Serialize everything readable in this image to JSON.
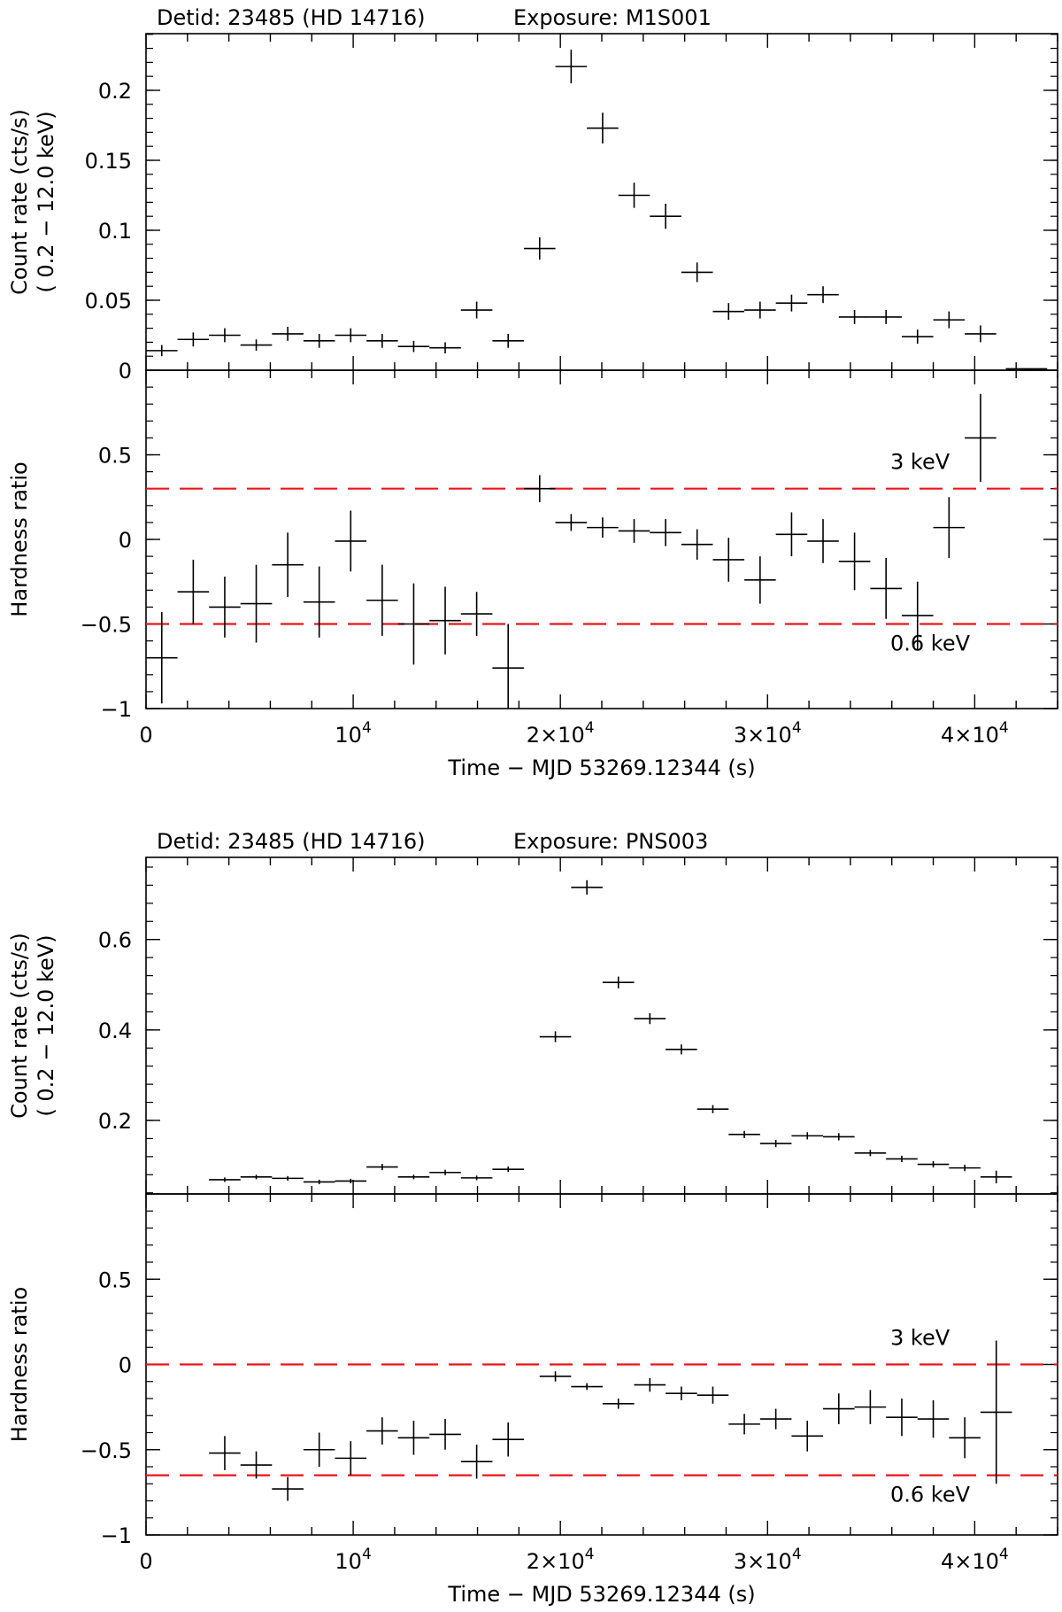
{
  "chart_data": [
    {
      "type": "scatter",
      "title_left": "Detid: 23485 (HD 14716)",
      "title_right": "Exposure: M1S001",
      "xlabel": "Time − MJD  53269.12344 (s)",
      "xlim": [
        0,
        44000
      ],
      "x_ticks": [
        {
          "value": 0,
          "base": "0",
          "exp": ""
        },
        {
          "value": 10000,
          "base": "10",
          "exp": "4"
        },
        {
          "value": 20000,
          "base": "2×10",
          "exp": "4"
        },
        {
          "value": 30000,
          "base": "3×10",
          "exp": "4"
        },
        {
          "value": 40000,
          "base": "4×10",
          "exp": "4"
        }
      ],
      "rate": {
        "ylabel1": "Count rate (cts/s)",
        "ylabel2": "( 0.2 − 12.0 keV)",
        "ylim": [
          0,
          0.2405
        ],
        "y_ticks": [
          {
            "value": 0,
            "label": "0"
          },
          {
            "value": 0.05,
            "label": "0.05"
          },
          {
            "value": 0.1,
            "label": "0.1"
          },
          {
            "value": 0.15,
            "label": "0.15"
          },
          {
            "value": 0.2,
            "label": "0.2"
          }
        ],
        "points": [
          {
            "x": 760,
            "y": 0.014,
            "xerr": 760,
            "yerr": 0.004
          },
          {
            "x": 2280,
            "y": 0.022,
            "xerr": 760,
            "yerr": 0.005
          },
          {
            "x": 3800,
            "y": 0.025,
            "xerr": 760,
            "yerr": 0.005
          },
          {
            "x": 5320,
            "y": 0.018,
            "xerr": 760,
            "yerr": 0.004
          },
          {
            "x": 6840,
            "y": 0.026,
            "xerr": 760,
            "yerr": 0.005
          },
          {
            "x": 8360,
            "y": 0.021,
            "xerr": 760,
            "yerr": 0.005
          },
          {
            "x": 9880,
            "y": 0.025,
            "xerr": 760,
            "yerr": 0.005
          },
          {
            "x": 11400,
            "y": 0.021,
            "xerr": 760,
            "yerr": 0.005
          },
          {
            "x": 12920,
            "y": 0.017,
            "xerr": 760,
            "yerr": 0.004
          },
          {
            "x": 14440,
            "y": 0.016,
            "xerr": 760,
            "yerr": 0.004
          },
          {
            "x": 15960,
            "y": 0.043,
            "xerr": 760,
            "yerr": 0.006
          },
          {
            "x": 17480,
            "y": 0.021,
            "xerr": 760,
            "yerr": 0.005
          },
          {
            "x": 19000,
            "y": 0.087,
            "xerr": 760,
            "yerr": 0.008
          },
          {
            "x": 20520,
            "y": 0.217,
            "xerr": 760,
            "yerr": 0.012
          },
          {
            "x": 22040,
            "y": 0.173,
            "xerr": 760,
            "yerr": 0.011
          },
          {
            "x": 23560,
            "y": 0.125,
            "xerr": 760,
            "yerr": 0.009
          },
          {
            "x": 25080,
            "y": 0.11,
            "xerr": 760,
            "yerr": 0.009
          },
          {
            "x": 26600,
            "y": 0.07,
            "xerr": 760,
            "yerr": 0.007
          },
          {
            "x": 28120,
            "y": 0.042,
            "xerr": 760,
            "yerr": 0.006
          },
          {
            "x": 29640,
            "y": 0.043,
            "xerr": 760,
            "yerr": 0.006
          },
          {
            "x": 31160,
            "y": 0.048,
            "xerr": 760,
            "yerr": 0.006
          },
          {
            "x": 32680,
            "y": 0.054,
            "xerr": 760,
            "yerr": 0.006
          },
          {
            "x": 34200,
            "y": 0.038,
            "xerr": 760,
            "yerr": 0.005
          },
          {
            "x": 35720,
            "y": 0.038,
            "xerr": 760,
            "yerr": 0.005
          },
          {
            "x": 37240,
            "y": 0.024,
            "xerr": 760,
            "yerr": 0.005
          },
          {
            "x": 38760,
            "y": 0.036,
            "xerr": 760,
            "yerr": 0.006
          },
          {
            "x": 40280,
            "y": 0.026,
            "xerr": 760,
            "yerr": 0.006
          },
          {
            "x": 42500,
            "y": 0.001,
            "xerr": 1000,
            "yerr": 0.0005
          }
        ]
      },
      "hardness": {
        "ylabel": "Hardness ratio",
        "ylim": [
          -1,
          1
        ],
        "y_ticks": [
          {
            "value": -1,
            "label": "−1"
          },
          {
            "value": -0.5,
            "label": "−0.5"
          },
          {
            "value": 0,
            "label": "0"
          },
          {
            "value": 0.5,
            "label": "0.5"
          }
        ],
        "ref_lines": [
          {
            "y": 0.3,
            "label": "3 keV"
          },
          {
            "y": -0.5,
            "label": "0.6 keV"
          }
        ],
        "points": [
          {
            "x": 760,
            "y": -0.7,
            "xerr": 760,
            "yerr": 0.27
          },
          {
            "x": 2280,
            "y": -0.31,
            "xerr": 760,
            "yerr": 0.19
          },
          {
            "x": 3800,
            "y": -0.4,
            "xerr": 760,
            "yerr": 0.18
          },
          {
            "x": 5320,
            "y": -0.38,
            "xerr": 760,
            "yerr": 0.23
          },
          {
            "x": 6840,
            "y": -0.15,
            "xerr": 760,
            "yerr": 0.19
          },
          {
            "x": 8360,
            "y": -0.37,
            "xerr": 760,
            "yerr": 0.21
          },
          {
            "x": 9880,
            "y": -0.01,
            "xerr": 760,
            "yerr": 0.18
          },
          {
            "x": 11400,
            "y": -0.36,
            "xerr": 760,
            "yerr": 0.21
          },
          {
            "x": 12920,
            "y": -0.5,
            "xerr": 760,
            "yerr": 0.24
          },
          {
            "x": 14440,
            "y": -0.48,
            "xerr": 760,
            "yerr": 0.2
          },
          {
            "x": 15960,
            "y": -0.44,
            "xerr": 760,
            "yerr": 0.13
          },
          {
            "x": 17480,
            "y": -0.76,
            "xerr": 760,
            "yerr": 0.26
          },
          {
            "x": 19000,
            "y": 0.3,
            "xerr": 760,
            "yerr": 0.08
          },
          {
            "x": 20520,
            "y": 0.1,
            "xerr": 760,
            "yerr": 0.05
          },
          {
            "x": 22040,
            "y": 0.07,
            "xerr": 760,
            "yerr": 0.06
          },
          {
            "x": 23560,
            "y": 0.05,
            "xerr": 760,
            "yerr": 0.07
          },
          {
            "x": 25080,
            "y": 0.04,
            "xerr": 760,
            "yerr": 0.08
          },
          {
            "x": 26600,
            "y": -0.03,
            "xerr": 760,
            "yerr": 0.09
          },
          {
            "x": 28120,
            "y": -0.12,
            "xerr": 760,
            "yerr": 0.13
          },
          {
            "x": 29640,
            "y": -0.24,
            "xerr": 760,
            "yerr": 0.14
          },
          {
            "x": 31160,
            "y": 0.03,
            "xerr": 760,
            "yerr": 0.13
          },
          {
            "x": 32680,
            "y": -0.01,
            "xerr": 760,
            "yerr": 0.13
          },
          {
            "x": 34200,
            "y": -0.13,
            "xerr": 760,
            "yerr": 0.17
          },
          {
            "x": 35720,
            "y": -0.29,
            "xerr": 760,
            "yerr": 0.18
          },
          {
            "x": 37240,
            "y": -0.45,
            "xerr": 760,
            "yerr": 0.2
          },
          {
            "x": 38760,
            "y": 0.07,
            "xerr": 760,
            "yerr": 0.18
          },
          {
            "x": 40280,
            "y": 0.6,
            "xerr": 760,
            "yerr": 0.26
          }
        ]
      }
    },
    {
      "type": "scatter",
      "title_left": "Detid: 23485 (HD 14716)",
      "title_right": "Exposure: PNS003",
      "xlabel": "Time − MJD  53269.12344 (s)",
      "xlim": [
        0,
        44000
      ],
      "x_ticks": [
        {
          "value": 0,
          "base": "0",
          "exp": ""
        },
        {
          "value": 10000,
          "base": "10",
          "exp": "4"
        },
        {
          "value": 20000,
          "base": "2×10",
          "exp": "4"
        },
        {
          "value": 30000,
          "base": "3×10",
          "exp": "4"
        },
        {
          "value": 40000,
          "base": "4×10",
          "exp": "4"
        }
      ],
      "rate": {
        "ylabel1": "Count rate (cts/s)",
        "ylabel2": "( 0.2 − 12.0 keV)",
        "ylim": [
          0.0375,
          0.7815
        ],
        "y_ticks": [
          {
            "value": 0.2,
            "label": "0.2"
          },
          {
            "value": 0.4,
            "label": "0.4"
          },
          {
            "value": 0.6,
            "label": "0.6"
          }
        ],
        "points": [
          {
            "x": 3800,
            "y": 0.069,
            "xerr": 760,
            "yerr": 0.005
          },
          {
            "x": 5320,
            "y": 0.075,
            "xerr": 760,
            "yerr": 0.005
          },
          {
            "x": 6840,
            "y": 0.072,
            "xerr": 760,
            "yerr": 0.005
          },
          {
            "x": 8360,
            "y": 0.064,
            "xerr": 760,
            "yerr": 0.005
          },
          {
            "x": 9880,
            "y": 0.066,
            "xerr": 760,
            "yerr": 0.005
          },
          {
            "x": 11400,
            "y": 0.097,
            "xerr": 760,
            "yerr": 0.007
          },
          {
            "x": 12920,
            "y": 0.075,
            "xerr": 760,
            "yerr": 0.005
          },
          {
            "x": 14440,
            "y": 0.085,
            "xerr": 760,
            "yerr": 0.006
          },
          {
            "x": 15960,
            "y": 0.073,
            "xerr": 760,
            "yerr": 0.005
          },
          {
            "x": 17480,
            "y": 0.092,
            "xerr": 760,
            "yerr": 0.006
          },
          {
            "x": 19760,
            "y": 0.385,
            "xerr": 760,
            "yerr": 0.012
          },
          {
            "x": 21280,
            "y": 0.715,
            "xerr": 760,
            "yerr": 0.016
          },
          {
            "x": 22800,
            "y": 0.505,
            "xerr": 760,
            "yerr": 0.013
          },
          {
            "x": 24320,
            "y": 0.425,
            "xerr": 760,
            "yerr": 0.012
          },
          {
            "x": 25840,
            "y": 0.357,
            "xerr": 760,
            "yerr": 0.011
          },
          {
            "x": 27360,
            "y": 0.225,
            "xerr": 760,
            "yerr": 0.009
          },
          {
            "x": 28880,
            "y": 0.169,
            "xerr": 760,
            "yerr": 0.008
          },
          {
            "x": 30400,
            "y": 0.149,
            "xerr": 760,
            "yerr": 0.008
          },
          {
            "x": 31920,
            "y": 0.166,
            "xerr": 760,
            "yerr": 0.008
          },
          {
            "x": 33440,
            "y": 0.164,
            "xerr": 760,
            "yerr": 0.008
          },
          {
            "x": 34960,
            "y": 0.128,
            "xerr": 760,
            "yerr": 0.007
          },
          {
            "x": 36480,
            "y": 0.115,
            "xerr": 760,
            "yerr": 0.007
          },
          {
            "x": 38000,
            "y": 0.103,
            "xerr": 760,
            "yerr": 0.007
          },
          {
            "x": 39520,
            "y": 0.095,
            "xerr": 760,
            "yerr": 0.007
          },
          {
            "x": 41040,
            "y": 0.075,
            "xerr": 760,
            "yerr": 0.014
          }
        ]
      },
      "hardness": {
        "ylabel": "Hardness ratio",
        "ylim": [
          -1,
          1
        ],
        "y_ticks": [
          {
            "value": -1,
            "label": "−1"
          },
          {
            "value": -0.5,
            "label": "−0.5"
          },
          {
            "value": 0,
            "label": "0"
          },
          {
            "value": 0.5,
            "label": "0.5"
          }
        ],
        "ref_lines": [
          {
            "y": 0.0,
            "label": "3 keV"
          },
          {
            "y": -0.65,
            "label": "0.6 keV"
          }
        ],
        "points": [
          {
            "x": 3800,
            "y": -0.52,
            "xerr": 760,
            "yerr": 0.1
          },
          {
            "x": 5320,
            "y": -0.59,
            "xerr": 760,
            "yerr": 0.08
          },
          {
            "x": 6840,
            "y": -0.73,
            "xerr": 760,
            "yerr": 0.07
          },
          {
            "x": 8360,
            "y": -0.5,
            "xerr": 760,
            "yerr": 0.1
          },
          {
            "x": 9880,
            "y": -0.55,
            "xerr": 760,
            "yerr": 0.1
          },
          {
            "x": 11400,
            "y": -0.39,
            "xerr": 760,
            "yerr": 0.08
          },
          {
            "x": 12920,
            "y": -0.43,
            "xerr": 760,
            "yerr": 0.1
          },
          {
            "x": 14440,
            "y": -0.41,
            "xerr": 760,
            "yerr": 0.09
          },
          {
            "x": 15960,
            "y": -0.57,
            "xerr": 760,
            "yerr": 0.1
          },
          {
            "x": 17480,
            "y": -0.44,
            "xerr": 760,
            "yerr": 0.1
          },
          {
            "x": 19760,
            "y": -0.07,
            "xerr": 760,
            "yerr": 0.03
          },
          {
            "x": 21280,
            "y": -0.13,
            "xerr": 760,
            "yerr": 0.02
          },
          {
            "x": 22800,
            "y": -0.23,
            "xerr": 760,
            "yerr": 0.03
          },
          {
            "x": 24320,
            "y": -0.12,
            "xerr": 760,
            "yerr": 0.04
          },
          {
            "x": 25840,
            "y": -0.17,
            "xerr": 760,
            "yerr": 0.04
          },
          {
            "x": 27360,
            "y": -0.18,
            "xerr": 760,
            "yerr": 0.05
          },
          {
            "x": 28880,
            "y": -0.35,
            "xerr": 760,
            "yerr": 0.06
          },
          {
            "x": 30400,
            "y": -0.32,
            "xerr": 760,
            "yerr": 0.06
          },
          {
            "x": 31920,
            "y": -0.42,
            "xerr": 760,
            "yerr": 0.09
          },
          {
            "x": 33440,
            "y": -0.26,
            "xerr": 760,
            "yerr": 0.09
          },
          {
            "x": 34960,
            "y": -0.25,
            "xerr": 760,
            "yerr": 0.1
          },
          {
            "x": 36480,
            "y": -0.31,
            "xerr": 760,
            "yerr": 0.11
          },
          {
            "x": 38000,
            "y": -0.32,
            "xerr": 760,
            "yerr": 0.11
          },
          {
            "x": 39520,
            "y": -0.43,
            "xerr": 760,
            "yerr": 0.12
          },
          {
            "x": 41040,
            "y": -0.28,
            "xerr": 760,
            "yerr": 0.42
          }
        ]
      }
    }
  ]
}
